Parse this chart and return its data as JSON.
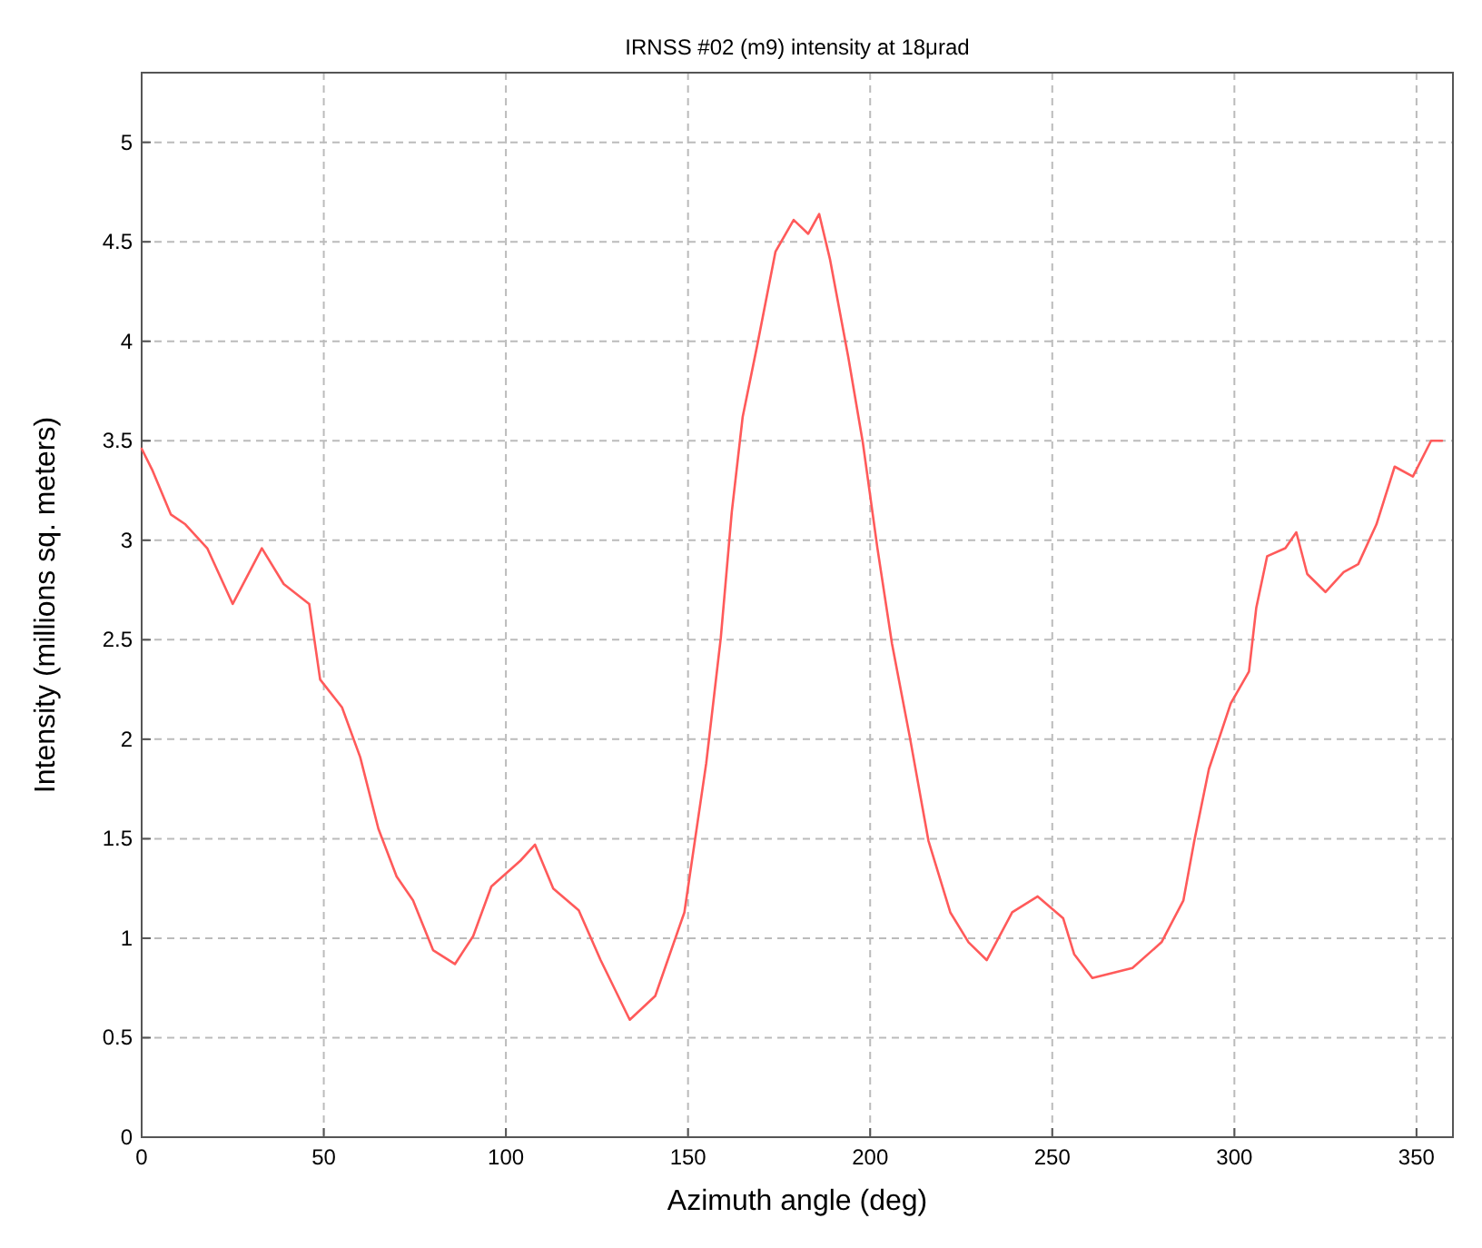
{
  "chart_data": {
    "type": "line",
    "title": "IRNSS #02 (m9) intensity at 18μrad",
    "xlabel": "Azimuth angle (deg)",
    "ylabel": "Intensity (millions sq. meters)",
    "xlim": [
      0,
      360
    ],
    "ylim": [
      0,
      5.35
    ],
    "xticks": [
      0,
      50,
      100,
      150,
      200,
      250,
      300,
      350
    ],
    "yticks": [
      0,
      0.5,
      1,
      1.5,
      2,
      2.5,
      3,
      3.5,
      4,
      4.5,
      5
    ],
    "grid": true,
    "line_style": "solid",
    "marker": "none",
    "series": [
      {
        "color": "#ff5a5a",
        "x": [
          0,
          3,
          8,
          12,
          18,
          25,
          33,
          39,
          46,
          49,
          55,
          60,
          65,
          70,
          74.5,
          80,
          86,
          91,
          96,
          104,
          108,
          113,
          120,
          126,
          134,
          141,
          149,
          155,
          159,
          162,
          165,
          169,
          174,
          179,
          183,
          186,
          189,
          194,
          198,
          202,
          206,
          211,
          216,
          222,
          227,
          232,
          239,
          246,
          253,
          256,
          261,
          272,
          280,
          286,
          289,
          293,
          299,
          304,
          306,
          309,
          314,
          317,
          320,
          325,
          330,
          334,
          339,
          344,
          349,
          354,
          357
        ],
        "values": [
          3.46,
          3.35,
          3.13,
          3.08,
          2.96,
          2.68,
          2.96,
          2.78,
          2.68,
          2.3,
          2.16,
          1.91,
          1.55,
          1.31,
          1.19,
          0.94,
          0.87,
          1.01,
          1.26,
          1.39,
          1.47,
          1.25,
          1.14,
          0.89,
          0.59,
          0.71,
          1.13,
          1.88,
          2.51,
          3.14,
          3.62,
          3.98,
          4.45,
          4.61,
          4.54,
          4.64,
          4.41,
          3.92,
          3.49,
          2.96,
          2.48,
          2.0,
          1.49,
          1.13,
          0.98,
          0.89,
          1.13,
          1.21,
          1.1,
          0.92,
          0.8,
          0.85,
          0.98,
          1.19,
          1.49,
          1.85,
          2.18,
          2.34,
          2.66,
          2.92,
          2.96,
          3.04,
          2.83,
          2.74,
          2.84,
          2.88,
          3.08,
          3.37,
          3.32,
          3.5,
          3.5
        ]
      }
    ]
  }
}
